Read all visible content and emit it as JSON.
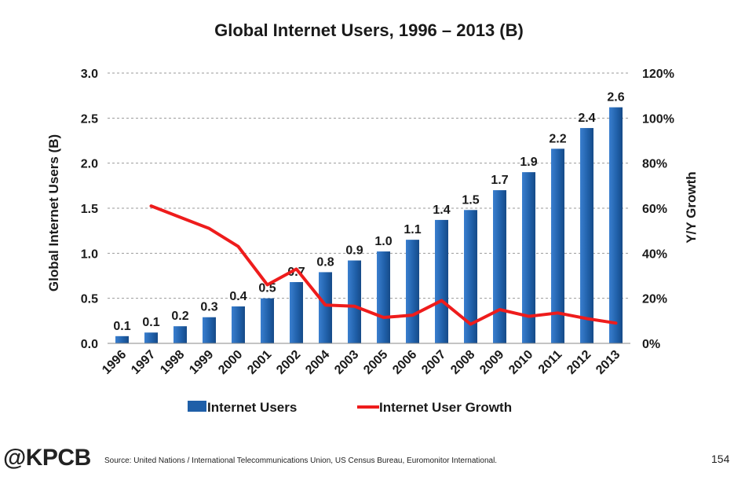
{
  "chart_data": {
    "type": "bar",
    "title": "Global Internet Users, 1996 – 2013 (B)",
    "categories": [
      "1996",
      "1997",
      "1998",
      "1999",
      "2000",
      "2001",
      "2002",
      "2004",
      "2003",
      "2005",
      "2006",
      "2007",
      "2008",
      "2009",
      "2010",
      "2011",
      "2012",
      "2013"
    ],
    "series": [
      {
        "name": "Internet Users",
        "kind": "bar",
        "axis": "left",
        "color": "#1f5fa8",
        "values": [
          0.08,
          0.12,
          0.19,
          0.29,
          0.41,
          0.5,
          0.68,
          0.79,
          0.92,
          1.02,
          1.15,
          1.37,
          1.48,
          1.7,
          1.9,
          2.16,
          2.39,
          2.62
        ],
        "labels": [
          "0.1",
          "0.1",
          "0.2",
          "0.3",
          "0.4",
          "0.5",
          "0.7",
          "0.8",
          "0.9",
          "1.0",
          "1.1",
          "1.4",
          "1.5",
          "1.7",
          "1.9",
          "2.2",
          "2.4",
          "2.6"
        ]
      },
      {
        "name": "Internet User Growth",
        "kind": "line",
        "axis": "right",
        "color": "#ee1c1c",
        "values": [
          null,
          61,
          56,
          51,
          43,
          26,
          33,
          17,
          16.5,
          11.5,
          12.5,
          19,
          8.5,
          15,
          12,
          13.5,
          11,
          9
        ]
      }
    ],
    "ylabel": "Global Internet Users (B)",
    "y2label": "Y/Y Growth",
    "ylim": [
      0,
      3.0
    ],
    "y2lim": [
      0,
      120
    ],
    "yticks": [
      "0.0",
      "0.5",
      "1.0",
      "1.5",
      "2.0",
      "2.5",
      "3.0"
    ],
    "y2ticks": [
      "0%",
      "20%",
      "40%",
      "60%",
      "80%",
      "100%",
      "120%"
    ],
    "grid": true,
    "legend_position": "bottom"
  },
  "footer": {
    "logo": "@KPCB",
    "source": "Source: United Nations / International Telecommunications Union, US Census Bureau, Euromonitor International.",
    "page_number": "154"
  }
}
